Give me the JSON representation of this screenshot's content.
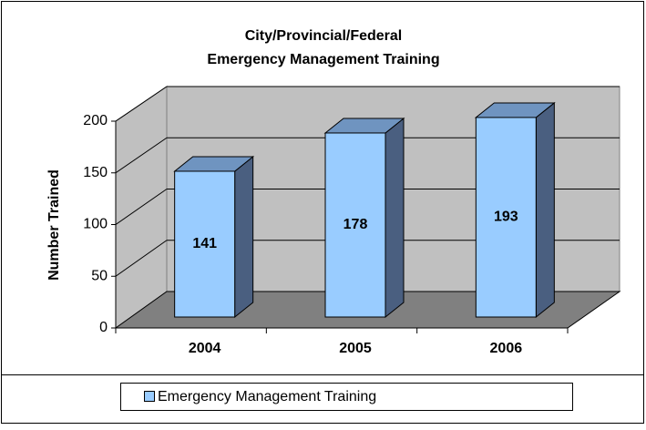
{
  "chart_data": {
    "type": "bar3d",
    "title": [
      "City/Provincial/Federal",
      "Emergency Management Training"
    ],
    "y_label": "Number Trained",
    "categories": [
      "2004",
      "2005",
      "2006"
    ],
    "series": [
      {
        "name": "Emergency Management Training",
        "color": "#99ccff",
        "values": [
          141,
          178,
          193
        ]
      }
    ],
    "ylim": [
      0,
      200
    ],
    "yticks": [
      0,
      50,
      100,
      150,
      200
    ],
    "grid": true,
    "legend": "bottom"
  }
}
